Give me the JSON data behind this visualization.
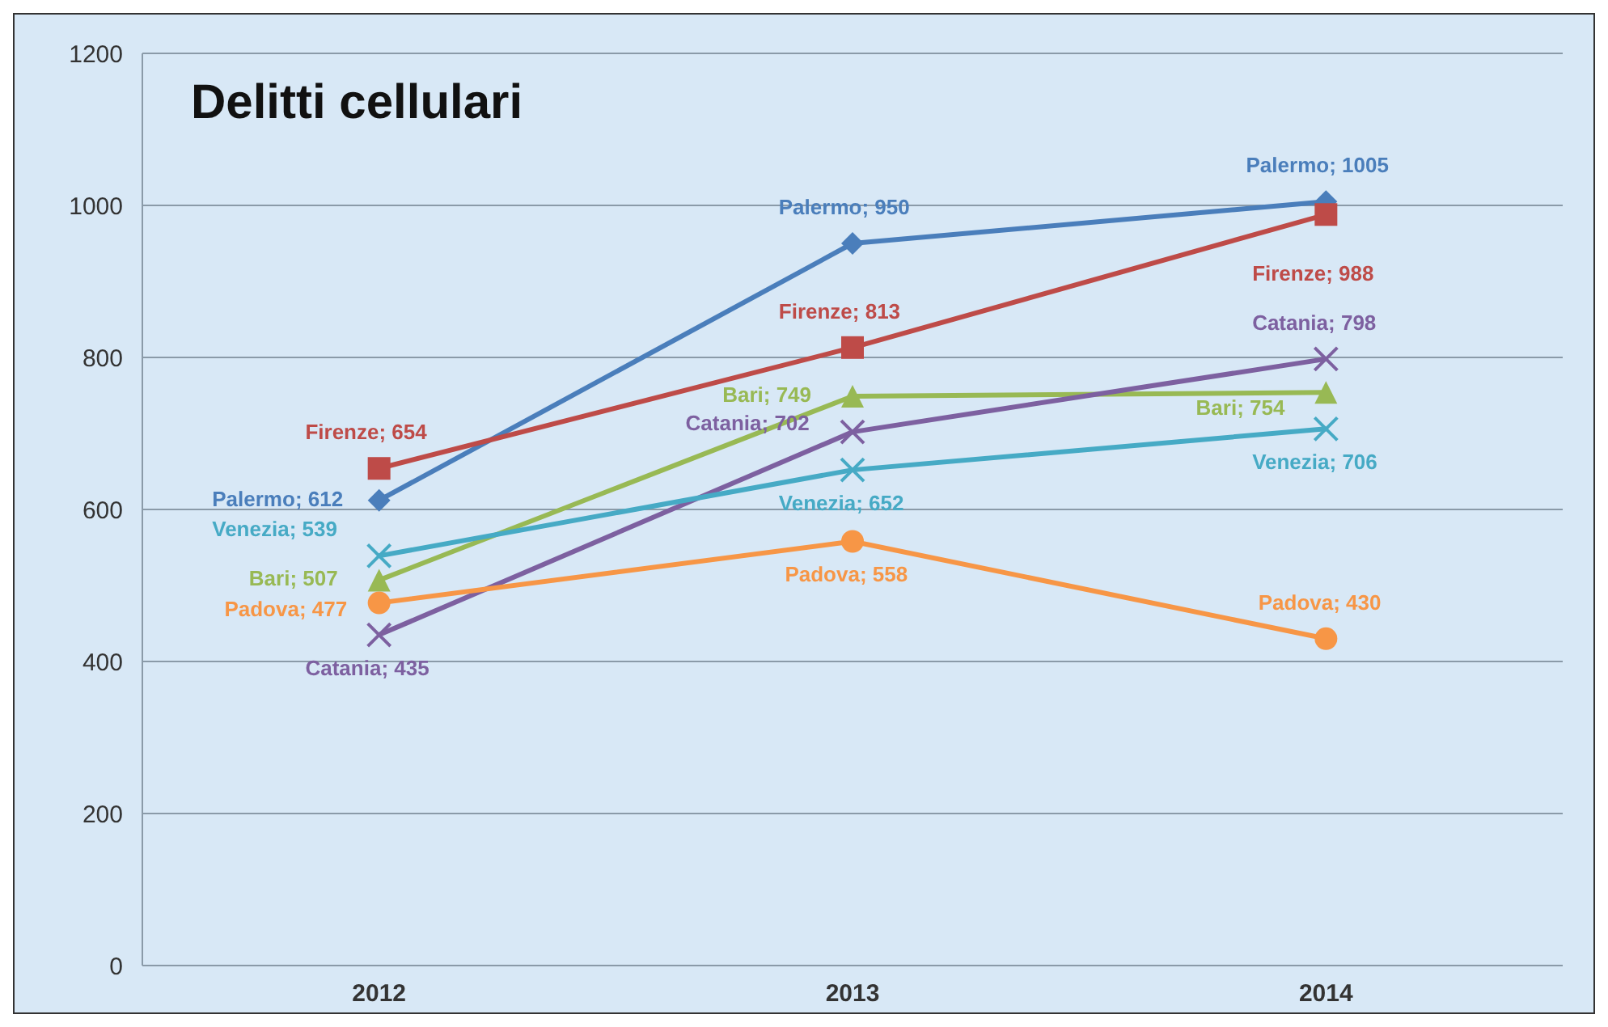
{
  "chart_data": {
    "type": "line",
    "title": "Delitti cellulari",
    "categories": [
      "2012",
      "2013",
      "2014"
    ],
    "series": [
      {
        "name": "Palermo",
        "color": "#4a7ebb",
        "marker": "diamond",
        "values": [
          612,
          950,
          1005
        ],
        "value_labels": [
          "; 612",
          "; 950",
          "; 1005"
        ]
      },
      {
        "name": "Firenze",
        "color": "#be4b48",
        "marker": "square",
        "values": [
          654,
          813,
          988
        ],
        "value_labels": [
          "; 654",
          "; 813",
          "; 988"
        ]
      },
      {
        "name": "Bari",
        "color": "#98b954",
        "marker": "triangle",
        "values": [
          507,
          749,
          754
        ],
        "value_labels": [
          "; 507",
          "; 749",
          "; 754"
        ]
      },
      {
        "name": "Catania",
        "color": "#7d60a0",
        "marker": "cross",
        "values": [
          435,
          702,
          798
        ],
        "value_labels": [
          "; 435",
          "; 702",
          "; 798"
        ]
      },
      {
        "name": "Venezia",
        "color": "#46aac5",
        "marker": "cross",
        "values": [
          539,
          652,
          706
        ],
        "value_labels": [
          "; 539",
          "; 652",
          "; 706"
        ]
      },
      {
        "name": "Padova",
        "color": "#f79646",
        "marker": "circle",
        "values": [
          477,
          558,
          430
        ],
        "value_labels": [
          "; 477",
          "; 558",
          "; 430"
        ]
      }
    ],
    "ylim": [
      0,
      1200
    ],
    "yticks": [
      0,
      200,
      400,
      600,
      800,
      1000,
      1200
    ],
    "grid": "y",
    "line_style": "solid"
  }
}
